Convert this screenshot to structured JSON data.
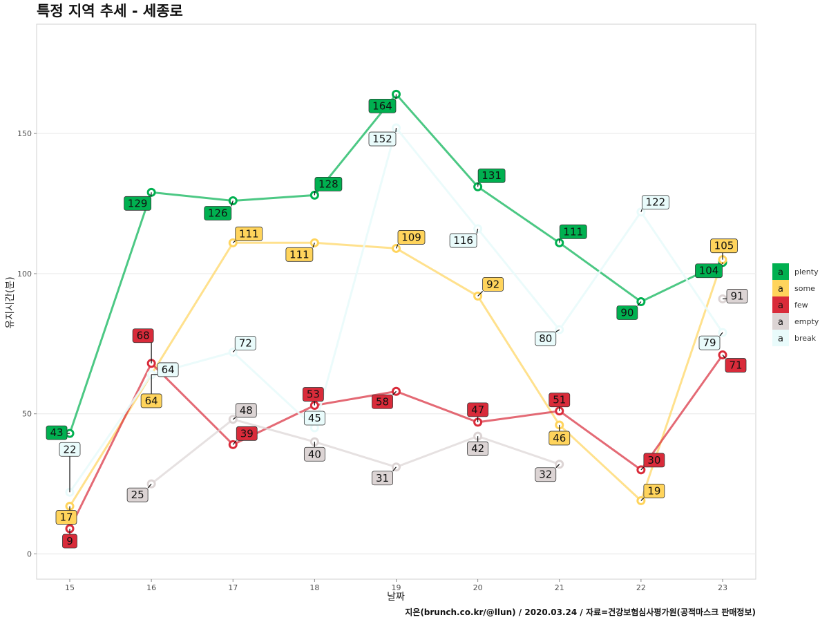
{
  "chart_data": {
    "type": "line",
    "title": "특정 지역 추세 - 세종로",
    "xlabel": "날짜",
    "ylabel": "유지시간(분)",
    "caption": "지은(brunch.co.kr/@llun) / 2020.03.24 / 자료=건강보험심사평가원(공적마스크 판매정보)",
    "x": [
      15,
      16,
      17,
      18,
      19,
      20,
      21,
      22,
      23
    ],
    "x_ticks": [
      "15",
      "16",
      "17",
      "18",
      "19",
      "20",
      "21",
      "22",
      "23"
    ],
    "y_ticks": [
      "0",
      "50",
      "100",
      "150"
    ],
    "ylim": [
      -9,
      189
    ],
    "grid": true,
    "legend_position": "right",
    "legend_key_glyph": "a",
    "series": [
      {
        "name": "plenty",
        "color": "#00b050",
        "values": [
          43,
          129,
          126,
          128,
          164,
          131,
          111,
          90,
          104
        ],
        "label_texts": [
          "43",
          "129",
          "126",
          "128",
          "164",
          "131",
          "111",
          "90",
          "104"
        ]
      },
      {
        "name": "some",
        "color": "#ffd45c",
        "values": [
          17,
          64,
          111,
          111,
          109,
          92,
          46,
          19,
          105
        ],
        "label_texts": [
          "17",
          "64",
          "111",
          "111",
          "109",
          "92",
          "46",
          "19",
          "105"
        ]
      },
      {
        "name": "few",
        "color": "#d92b3a",
        "values": [
          9,
          68,
          39,
          53,
          58,
          47,
          51,
          30,
          71
        ],
        "label_texts": [
          "9",
          "68",
          "39",
          "53",
          "58",
          "47",
          "51",
          "30",
          "71"
        ]
      },
      {
        "name": "empty",
        "color": "#dcd4d4",
        "values": [
          null,
          25,
          48,
          40,
          31,
          42,
          32,
          null,
          91
        ],
        "label_texts": [
          "",
          "25",
          "48",
          "40",
          "31",
          "42",
          "32",
          "",
          "91"
        ]
      },
      {
        "name": "break",
        "color": "#e9fbfb",
        "values": [
          22,
          64,
          72,
          45,
          152,
          116,
          80,
          122,
          79
        ],
        "label_texts": [
          "22",
          "64",
          "72",
          "45",
          "152",
          "116",
          "80",
          "122",
          "79"
        ]
      }
    ]
  }
}
